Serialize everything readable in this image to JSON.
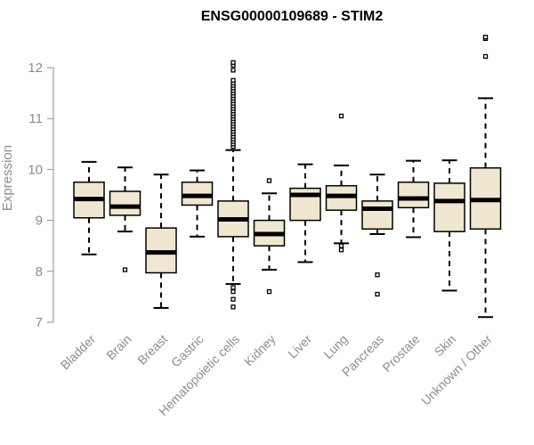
{
  "chart_data": {
    "type": "boxplot",
    "title": "ENSG00000109689 - STIM2",
    "xlabel": "",
    "ylabel": "Expression",
    "ylim": [
      7,
      12.6
    ],
    "yticks": [
      7,
      8,
      9,
      10,
      11,
      12
    ],
    "box_fill": "#efe7cf",
    "categories": [
      "Bladder",
      "Brain",
      "Breast",
      "Gastric",
      "Hematopoietic cells",
      "Kidney",
      "Liver",
      "Lung",
      "Pancreas",
      "Prostate",
      "Skin",
      "Unknown / Other"
    ],
    "boxes": [
      {
        "name": "Bladder",
        "whisker_low": 8.33,
        "q1": 9.05,
        "median": 9.42,
        "q3": 9.75,
        "whisker_high": 10.15,
        "outliers": []
      },
      {
        "name": "Brain",
        "whisker_low": 8.78,
        "q1": 9.1,
        "median": 9.27,
        "q3": 9.57,
        "whisker_high": 10.04,
        "outliers": [
          8.03
        ]
      },
      {
        "name": "Breast",
        "whisker_low": 7.28,
        "q1": 7.97,
        "median": 8.37,
        "q3": 8.85,
        "whisker_high": 9.9,
        "outliers": []
      },
      {
        "name": "Gastric",
        "whisker_low": 8.68,
        "q1": 9.3,
        "median": 9.48,
        "q3": 9.75,
        "whisker_high": 9.98,
        "outliers": []
      },
      {
        "name": "Hematopoietic cells",
        "whisker_low": 7.75,
        "q1": 8.68,
        "median": 9.02,
        "q3": 9.38,
        "whisker_high": 10.38,
        "outliers": [
          7.3,
          7.45,
          7.6,
          7.68,
          10.45,
          10.5,
          10.55,
          10.6,
          10.65,
          10.7,
          10.75,
          10.8,
          10.85,
          10.9,
          10.95,
          11.0,
          11.05,
          11.1,
          11.15,
          11.2,
          11.25,
          11.3,
          11.35,
          11.4,
          11.45,
          11.5,
          11.55,
          11.6,
          11.65,
          11.7,
          11.75,
          11.95,
          12.05,
          12.1
        ]
      },
      {
        "name": "Kidney",
        "whisker_low": 8.03,
        "q1": 8.5,
        "median": 8.73,
        "q3": 9.0,
        "whisker_high": 9.53,
        "outliers": [
          7.6,
          9.78
        ]
      },
      {
        "name": "Liver",
        "whisker_low": 8.18,
        "q1": 9.0,
        "median": 9.5,
        "q3": 9.63,
        "whisker_high": 10.1,
        "outliers": []
      },
      {
        "name": "Lung",
        "whisker_low": 8.55,
        "q1": 9.2,
        "median": 9.48,
        "q3": 9.68,
        "whisker_high": 10.08,
        "outliers": [
          8.42,
          8.5,
          11.05
        ]
      },
      {
        "name": "Pancreas",
        "whisker_low": 8.73,
        "q1": 8.83,
        "median": 9.23,
        "q3": 9.38,
        "whisker_high": 9.9,
        "outliers": [
          7.55,
          7.93
        ]
      },
      {
        "name": "Prostate",
        "whisker_low": 8.67,
        "q1": 9.25,
        "median": 9.43,
        "q3": 9.75,
        "whisker_high": 10.17,
        "outliers": []
      },
      {
        "name": "Skin",
        "whisker_low": 7.62,
        "q1": 8.78,
        "median": 9.38,
        "q3": 9.73,
        "whisker_high": 10.18,
        "outliers": []
      },
      {
        "name": "Unknown / Other",
        "whisker_low": 7.1,
        "q1": 8.83,
        "median": 9.4,
        "q3": 10.03,
        "whisker_high": 11.4,
        "outliers": [
          12.22,
          12.57,
          12.6
        ]
      }
    ]
  }
}
